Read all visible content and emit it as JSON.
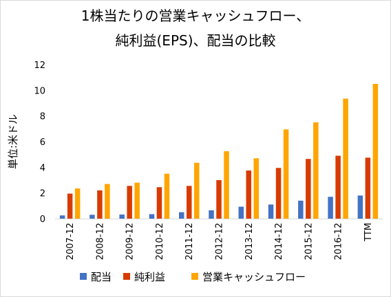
{
  "chart_data": {
    "type": "bar",
    "title_line1": "1株当たりの営業キャッシュフロー、",
    "title_line2": "純利益(EPS)、配当の比較",
    "ylabel": "単位:米ドル",
    "xlabel": "",
    "ylim": [
      0,
      12
    ],
    "yticks": [
      0,
      2,
      4,
      6,
      8,
      10,
      12
    ],
    "grid": false,
    "legend_position": "bottom",
    "categories": [
      "2007-12",
      "2008-12",
      "2009-12",
      "2010-12",
      "2011-12",
      "2012-12",
      "2013-12",
      "2014-12",
      "2015-12",
      "2016-12",
      "TTM"
    ],
    "series": [
      {
        "name": "配当",
        "color": "#4472C4",
        "values": [
          0.25,
          0.3,
          0.32,
          0.35,
          0.5,
          0.65,
          0.93,
          1.1,
          1.4,
          1.7,
          1.8
        ]
      },
      {
        "name": "純利益",
        "color": "#D83B01",
        "values": [
          1.95,
          2.2,
          2.55,
          2.45,
          2.55,
          3.0,
          3.75,
          3.95,
          4.65,
          4.9,
          4.75
        ]
      },
      {
        "name": "営業キャッシュフロー",
        "color": "#FFA500",
        "values": [
          2.35,
          2.7,
          2.8,
          3.5,
          4.35,
          5.25,
          4.7,
          6.95,
          7.5,
          9.35,
          10.5
        ]
      }
    ]
  }
}
